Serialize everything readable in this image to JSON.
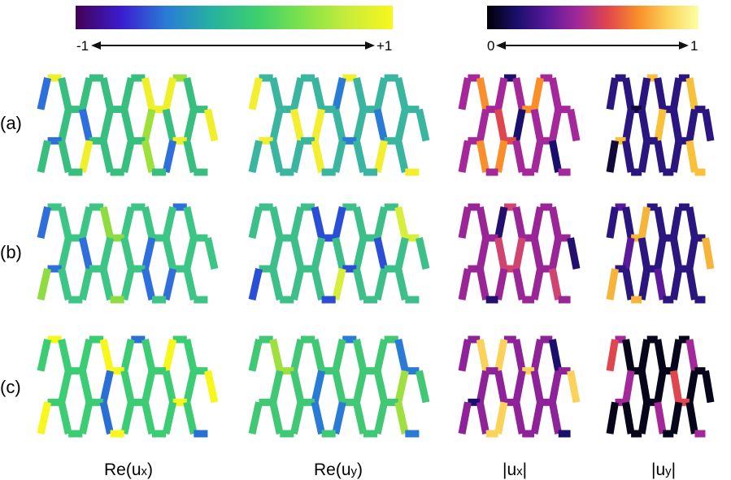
{
  "colorbars": [
    {
      "name": "viridis-colorbar",
      "min_label": "-1",
      "max_label": "+1",
      "stops": [
        "#440154",
        "#3b1ccf",
        "#2a7bd6",
        "#26b2a0",
        "#3ccf6e",
        "#7ee24a",
        "#c7ec3a",
        "#f8f71c"
      ]
    },
    {
      "name": "inferno-colorbar",
      "min_label": "0",
      "max_label": "1",
      "stops": [
        "#000004",
        "#1b0f6e",
        "#5a1a9a",
        "#a3289a",
        "#e0464e",
        "#f98e2a",
        "#fbd35a",
        "#fcffa4"
      ]
    }
  ],
  "row_labels": [
    "(a)",
    "(b)",
    "(c)"
  ],
  "column_labels": [
    {
      "prefix": "Re(u",
      "sub": "x",
      "suffix": ")"
    },
    {
      "prefix": "Re(u",
      "sub": "y",
      "suffix": ")"
    },
    {
      "prefix": "|u",
      "sub": "x",
      "suffix": "|"
    },
    {
      "prefix": "|u",
      "sub": "y",
      "suffix": "|"
    }
  ],
  "panels": [
    {
      "row": 0,
      "col": 0,
      "colormap": "viridis",
      "base": "#38bf7f",
      "accents": [
        "#f0f02a",
        "#2f6fdc",
        "#9de03a"
      ]
    },
    {
      "row": 0,
      "col": 1,
      "colormap": "viridis",
      "base": "#3ab5a0",
      "accents": [
        "#f3ee2e",
        "#2a7bd6"
      ]
    },
    {
      "row": 0,
      "col": 2,
      "colormap": "inferno",
      "base": "#a4289a",
      "accents": [
        "#f98e2a",
        "#1b0f6e",
        "#e0464e"
      ]
    },
    {
      "row": 0,
      "col": 3,
      "colormap": "inferno",
      "base": "#2a167e",
      "accents": [
        "#f9c03a",
        "#12083a"
      ]
    },
    {
      "row": 1,
      "col": 0,
      "colormap": "viridis",
      "base": "#3cc584",
      "accents": [
        "#2f6fdc",
        "#8fdc40"
      ]
    },
    {
      "row": 1,
      "col": 1,
      "colormap": "viridis",
      "base": "#3dbf8a",
      "accents": [
        "#2a4fd6",
        "#d7ef3a"
      ]
    },
    {
      "row": 1,
      "col": 2,
      "colormap": "inferno",
      "base": "#9a2596",
      "accents": [
        "#d04470",
        "#230f6e"
      ]
    },
    {
      "row": 1,
      "col": 3,
      "colormap": "inferno",
      "base": "#2a167e",
      "accents": [
        "#f7b43a",
        "#5a1a9a"
      ]
    },
    {
      "row": 2,
      "col": 0,
      "colormap": "viridis",
      "base": "#3ccc74",
      "accents": [
        "#f8f71c",
        "#2a6fd6"
      ]
    },
    {
      "row": 2,
      "col": 1,
      "colormap": "viridis",
      "base": "#40c874",
      "accents": [
        "#2a7bd6",
        "#9ee040"
      ]
    },
    {
      "row": 2,
      "col": 2,
      "colormap": "inferno",
      "base": "#8e2298",
      "accents": [
        "#fbd35a",
        "#1b0f6e"
      ]
    },
    {
      "row": 2,
      "col": 3,
      "colormap": "inferno",
      "base": "#07051a",
      "accents": [
        "#a3289a",
        "#e0464e"
      ]
    }
  ]
}
